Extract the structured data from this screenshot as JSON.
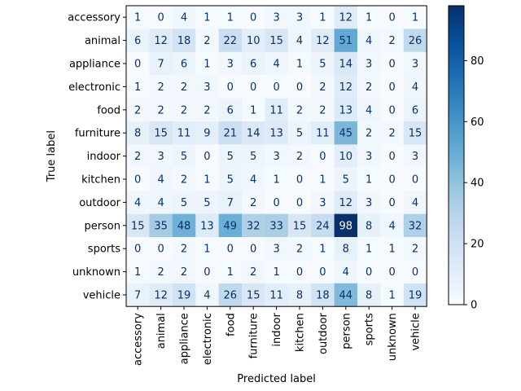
{
  "chart_data": {
    "type": "heatmap",
    "title": "",
    "xlabel": "Predicted label",
    "ylabel": "True label",
    "labels": [
      "accessory",
      "animal",
      "appliance",
      "electronic",
      "food",
      "furniture",
      "indoor",
      "kitchen",
      "outdoor",
      "person",
      "sports",
      "unknown",
      "vehicle"
    ],
    "matrix": [
      [
        1,
        0,
        4,
        1,
        1,
        0,
        3,
        3,
        1,
        12,
        1,
        0,
        1
      ],
      [
        6,
        12,
        18,
        2,
        22,
        10,
        15,
        4,
        12,
        51,
        4,
        2,
        26
      ],
      [
        0,
        7,
        6,
        1,
        3,
        6,
        4,
        1,
        5,
        14,
        3,
        0,
        3
      ],
      [
        1,
        2,
        2,
        3,
        0,
        0,
        0,
        0,
        2,
        12,
        2,
        0,
        4
      ],
      [
        2,
        2,
        2,
        2,
        6,
        1,
        11,
        2,
        2,
        13,
        4,
        0,
        6
      ],
      [
        8,
        15,
        11,
        9,
        21,
        14,
        13,
        5,
        11,
        45,
        2,
        2,
        15
      ],
      [
        2,
        3,
        5,
        0,
        5,
        5,
        3,
        2,
        0,
        10,
        3,
        0,
        3
      ],
      [
        0,
        4,
        2,
        1,
        5,
        4,
        1,
        0,
        1,
        5,
        1,
        0,
        0
      ],
      [
        4,
        4,
        5,
        5,
        7,
        2,
        0,
        0,
        3,
        12,
        3,
        0,
        4
      ],
      [
        15,
        35,
        48,
        13,
        49,
        32,
        33,
        15,
        24,
        98,
        8,
        4,
        32
      ],
      [
        0,
        0,
        2,
        1,
        0,
        0,
        3,
        2,
        1,
        8,
        1,
        1,
        2
      ],
      [
        1,
        2,
        2,
        0,
        1,
        2,
        1,
        0,
        0,
        4,
        0,
        0,
        0
      ],
      [
        7,
        12,
        19,
        4,
        26,
        15,
        11,
        8,
        18,
        44,
        8,
        1,
        19
      ]
    ],
    "colormap": "Blues",
    "vmin": 0,
    "vmax": 98,
    "colorbar_ticks": [
      0,
      20,
      40,
      60,
      80
    ],
    "grid": false
  }
}
